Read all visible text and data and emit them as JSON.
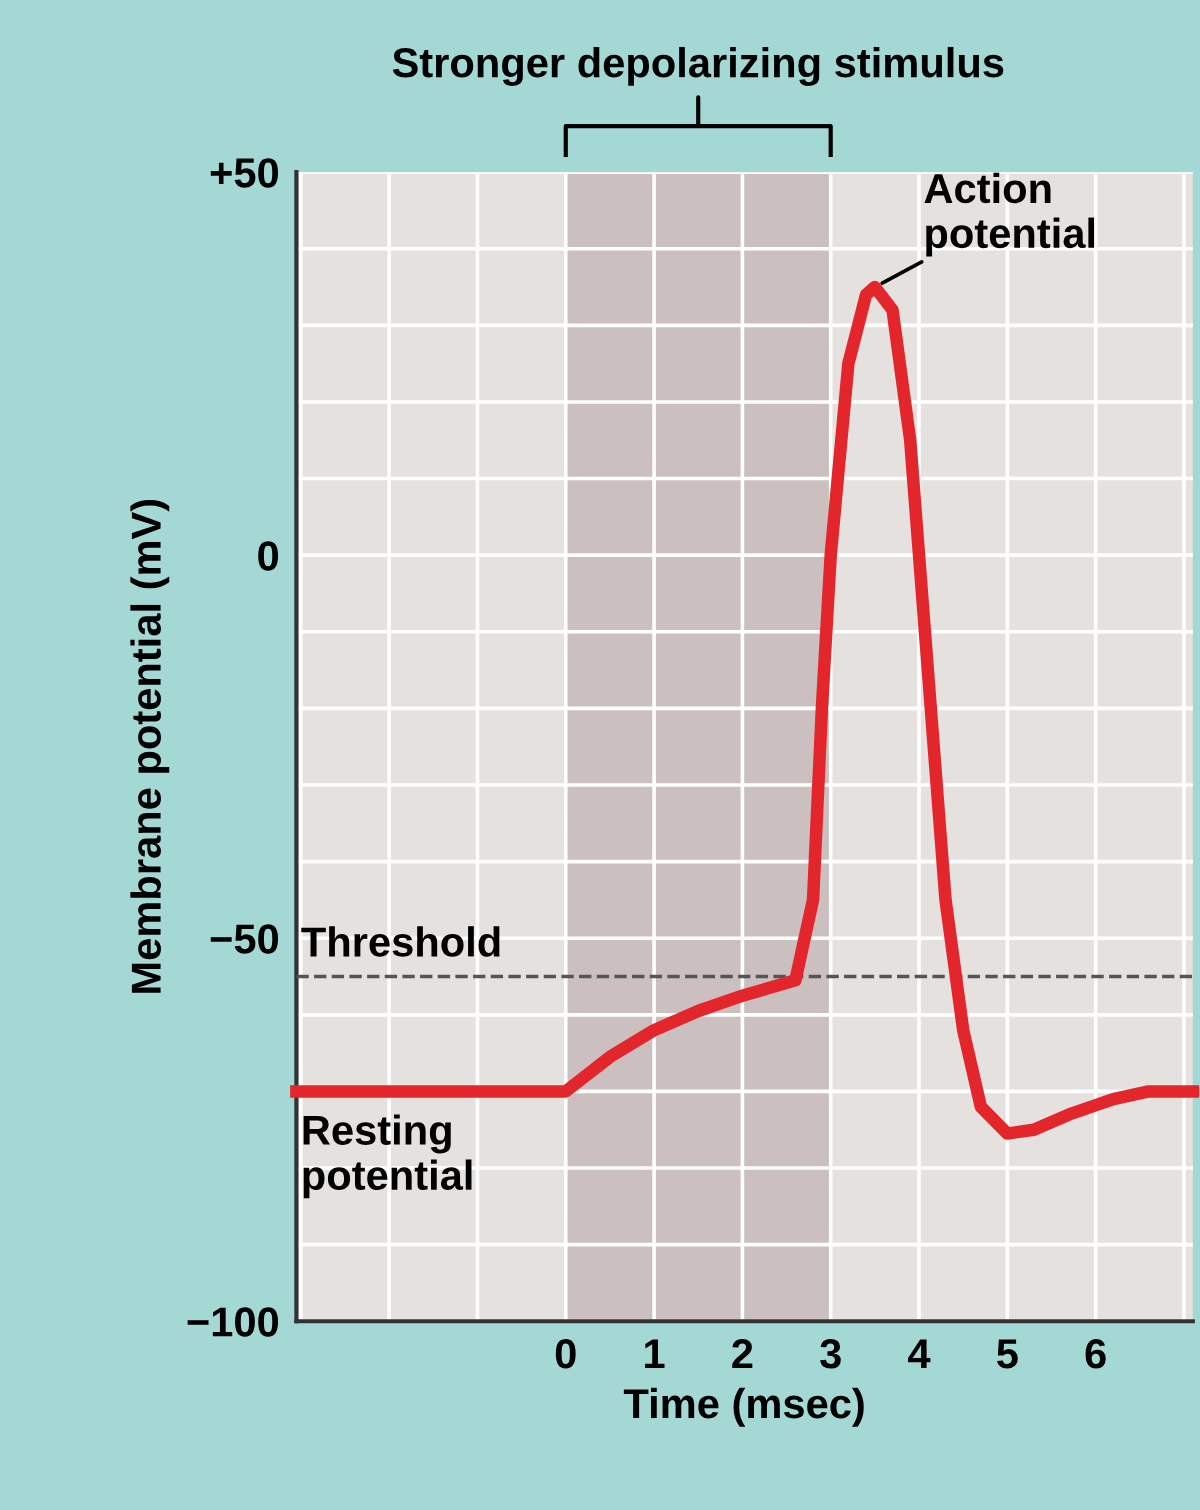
{
  "chart_data": {
    "type": "line",
    "xlabel": "Time (msec)",
    "ylabel": "Membrane potential (mV)",
    "x": [
      -3.05,
      0,
      0.5,
      1,
      1.5,
      2,
      2.6,
      2.8,
      2.9,
      3.0,
      3.2,
      3.4,
      3.5,
      3.7,
      3.9,
      4.1,
      4.3,
      4.5,
      4.7,
      5.0,
      5.3,
      5.7,
      6.2,
      6.6,
      7.1
    ],
    "series": [
      {
        "color": "#e3262c",
        "values": [
          -70,
          -70,
          -65.5,
          -62,
          -59.5,
          -57.5,
          -55.5,
          -45,
          -20,
          0,
          25,
          34,
          35,
          32,
          15,
          -15,
          -45,
          -62,
          -72,
          -75.5,
          -75,
          -73,
          -71,
          -70,
          -70
        ]
      }
    ],
    "xlim": [
      -3.05,
      7.1
    ],
    "ylim": [
      -100,
      50
    ],
    "xticks": [
      {
        "value": -3,
        "label": null
      },
      {
        "value": -2,
        "label": null
      },
      {
        "value": -1,
        "label": null
      },
      0,
      1,
      2,
      3,
      4,
      5,
      6,
      {
        "value": 7,
        "label": null
      }
    ],
    "yticks": [
      {
        "value": -100,
        "label": "−100"
      },
      {
        "value": -90,
        "label": null
      },
      {
        "value": -80,
        "label": null
      },
      {
        "value": -70,
        "label": null
      },
      {
        "value": -60,
        "label": null
      },
      {
        "value": -50,
        "label": "−50"
      },
      {
        "value": -40,
        "label": null
      },
      {
        "value": -30,
        "label": null
      },
      {
        "value": -20,
        "label": null
      },
      {
        "value": -10,
        "label": null
      },
      0,
      {
        "value": 10,
        "label": null
      },
      {
        "value": 20,
        "label": null
      },
      {
        "value": 30,
        "label": null
      },
      {
        "value": 40,
        "label": null
      },
      {
        "value": 50,
        "label": "+50"
      }
    ],
    "grid": true,
    "marker": "none",
    "line_style": "solid",
    "ref_lines": [
      {
        "axis": "y",
        "value": -55,
        "label": "Threshold",
        "color": "#555555",
        "line_style": "dashed"
      }
    ],
    "bands": [
      {
        "axis": "x",
        "from": 0,
        "to": 3,
        "label": "Stronger depolarizing stimulus",
        "color": "#cbbfbf"
      }
    ],
    "annotations": [
      {
        "text": "Action\npotential",
        "x": 3.5,
        "y": 35
      },
      {
        "text": "Resting\npotential",
        "x": -3.05,
        "y": -70
      }
    ]
  }
}
